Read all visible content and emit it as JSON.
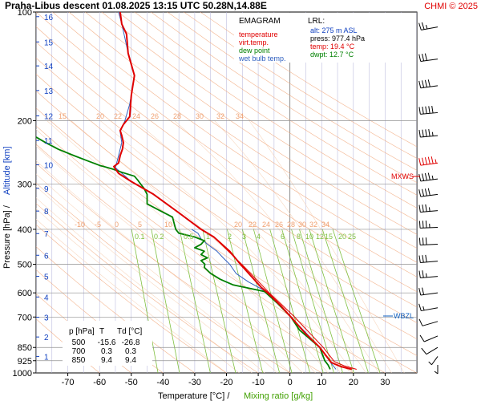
{
  "header": {
    "title": "Praha-Libus   descent   01.08.2025 13:15 UTC  50.28N,14.88E",
    "credit": "CHMI © 2025"
  },
  "colors": {
    "temperature": "#e00000",
    "virt_temp": "#e00000",
    "dew_point": "#008000",
    "wet_bulb": "#3060c0",
    "isotherm": "#b0b0d8",
    "dry_adiabat": "#f0a070",
    "moist_adiabat": "#f8d8c0",
    "mixing_ratio": "#80c040",
    "isobar": "#909090",
    "wind": "#000000",
    "mxws": "#e00000",
    "wbzl": "#1060c0"
  },
  "legend": {
    "title": "EMAGRAM",
    "items": [
      {
        "label": "temperature",
        "color": "#e00000"
      },
      {
        "label": "virt.temp.",
        "color": "#e00000"
      },
      {
        "label": "dew point",
        "color": "#008000"
      },
      {
        "label": "wet bulb temp.",
        "color": "#3060c0"
      }
    ]
  },
  "lrl": {
    "title": "LRL:",
    "alt": "alt: 275 m ASL",
    "press": "press: 977.4 hPa",
    "temp": "temp: 19.4 °C",
    "dwpt": "dwpt: 12.7 °C"
  },
  "table": {
    "headers": [
      "p [hPa]",
      "T",
      "Td [°C]"
    ],
    "rows": [
      [
        "500",
        "-15.6",
        "-26.8"
      ],
      [
        "700",
        "0.3",
        "0.3"
      ],
      [
        "850",
        "9.4",
        "9.4"
      ]
    ]
  },
  "markers": {
    "mxws": "MXWS",
    "wbzl": "WBZL"
  },
  "chart_data": {
    "type": "line",
    "xlabel": "Temperature [°C]  /",
    "xlabel2": "Mixing ratio [g/kg]",
    "ylabel": "Pressure [hPa]  /",
    "ylabel2": "Altitude [km]",
    "xlim": [
      -80,
      40
    ],
    "ylim": [
      1000,
      100
    ],
    "y_scale": "log",
    "x_ticks": [
      -70,
      -60,
      -50,
      -40,
      -30,
      -20,
      -10,
      0,
      10,
      20,
      30
    ],
    "y_ticks": [
      100,
      200,
      300,
      400,
      500,
      600,
      700,
      850,
      925,
      1000
    ],
    "altitude_ticks": [
      {
        "km": "1",
        "p": 900
      },
      {
        "km": "2",
        "p": 795
      },
      {
        "km": "3",
        "p": 701
      },
      {
        "km": "4",
        "p": 616
      },
      {
        "km": "5",
        "p": 540
      },
      {
        "km": "6",
        "p": 472
      },
      {
        "km": "7",
        "p": 411
      },
      {
        "km": "8",
        "p": 356
      },
      {
        "km": "9",
        "p": 308
      },
      {
        "km": "10",
        "p": 265
      },
      {
        "km": "11",
        "p": 227
      },
      {
        "km": "12",
        "p": 194
      },
      {
        "km": "13",
        "p": 165
      },
      {
        "km": "14",
        "p": 141
      },
      {
        "km": "15",
        "p": 121
      },
      {
        "km": "16",
        "p": 103
      }
    ],
    "dry_adiabat_labels": [
      "15",
      "20",
      "22",
      "24",
      "26",
      "28",
      "30",
      "32",
      "34"
    ],
    "moist_adiabat_labels": [
      "-10",
      "-5",
      "0",
      "5",
      "10",
      "20",
      "22",
      "24",
      "26",
      "28",
      "30",
      "32",
      "34"
    ],
    "mixing_ratio_labels": [
      "0.1",
      "0.2",
      "0.5",
      "1",
      "2",
      "3",
      "4",
      "6",
      "8",
      "10",
      "12",
      "15",
      "20",
      "25"
    ],
    "grid": true,
    "series": [
      {
        "name": "temperature",
        "points": [
          [
            19.5,
            977
          ],
          [
            16,
            960
          ],
          [
            13,
            935
          ],
          [
            9.4,
            850
          ],
          [
            5,
            780
          ],
          [
            0.3,
            700
          ],
          [
            -3,
            650
          ],
          [
            -7,
            600
          ],
          [
            -9,
            580
          ],
          [
            -15.6,
            500
          ],
          [
            -19,
            460
          ],
          [
            -24,
            420
          ],
          [
            -28,
            400
          ],
          [
            -35,
            360
          ],
          [
            -43,
            320
          ],
          [
            -50,
            295
          ],
          [
            -54,
            280
          ],
          [
            -55.5,
            268
          ],
          [
            -54,
            262
          ],
          [
            -53.5,
            250
          ],
          [
            -52.8,
            240
          ],
          [
            -52.5,
            230
          ],
          [
            -53,
            220
          ],
          [
            -53.5,
            213
          ],
          [
            -52.5,
            205
          ],
          [
            -50.5,
            195
          ],
          [
            -50,
            170
          ],
          [
            -49,
            150
          ],
          [
            -51,
            130
          ],
          [
            -51.5,
            115
          ],
          [
            -53,
            108
          ],
          [
            -53.5,
            100
          ]
        ]
      },
      {
        "name": "dew point",
        "points": [
          [
            12.7,
            977
          ],
          [
            12,
            950
          ],
          [
            11,
            925
          ],
          [
            9.4,
            850
          ],
          [
            3,
            760
          ],
          [
            0.3,
            700
          ],
          [
            -4,
            640
          ],
          [
            -8,
            595
          ],
          [
            -18,
            570
          ],
          [
            -22,
            550
          ],
          [
            -25,
            530
          ],
          [
            -27,
            510
          ],
          [
            -26.8,
            500
          ],
          [
            -28,
            488
          ],
          [
            -26,
            480
          ],
          [
            -28,
            470
          ],
          [
            -27,
            460
          ],
          [
            -30,
            450
          ],
          [
            -28,
            440
          ],
          [
            -27,
            430
          ],
          [
            -30,
            420
          ],
          [
            -35,
            410
          ],
          [
            -36,
            400
          ],
          [
            -36.5,
            385
          ],
          [
            -37,
            370
          ],
          [
            -41,
            355
          ],
          [
            -45,
            340
          ],
          [
            -45,
            320
          ],
          [
            -46,
            308
          ],
          [
            -47,
            300
          ],
          [
            -48,
            292
          ],
          [
            -49,
            285
          ],
          [
            -53,
            278
          ],
          [
            -56,
            272
          ],
          [
            -60,
            266
          ],
          [
            -64,
            258
          ],
          [
            -68,
            250
          ],
          [
            -73,
            240
          ],
          [
            -77,
            230
          ],
          [
            -80,
            222
          ]
        ]
      },
      {
        "name": "wet bulb temp.",
        "points": [
          [
            14.5,
            977
          ],
          [
            13,
            940
          ],
          [
            9.4,
            850
          ],
          [
            0.3,
            700
          ],
          [
            -7,
            600
          ],
          [
            -9,
            585
          ],
          [
            -13,
            560
          ],
          [
            -17,
            530
          ],
          [
            -19,
            500
          ],
          [
            -21,
            480
          ],
          [
            -23,
            460
          ],
          [
            -26,
            440
          ],
          [
            -28,
            425
          ],
          [
            -29,
            410
          ],
          [
            -31,
            400
          ]
        ]
      },
      {
        "name": "virt.temp.",
        "points": [
          [
            21,
            977
          ],
          [
            17,
            955
          ],
          [
            14,
            930
          ],
          [
            10.5,
            850
          ],
          [
            1.5,
            700
          ],
          [
            -6.5,
            600
          ],
          [
            -15.2,
            500
          ],
          [
            -24,
            420
          ],
          [
            -28,
            400
          ]
        ]
      },
      {
        "name": "upper wet bulb",
        "points": [
          [
            -50,
            295
          ],
          [
            -55,
            270
          ],
          [
            -54,
            250
          ],
          [
            -53,
            230
          ],
          [
            -53.5,
            215
          ],
          [
            -52,
            200
          ],
          [
            -50.5,
            180
          ],
          [
            -49.5,
            160
          ],
          [
            -49,
            150
          ],
          [
            -50,
            140
          ],
          [
            -51,
            130
          ],
          [
            -52,
            118
          ],
          [
            -53,
            108
          ],
          [
            -54,
            100
          ]
        ]
      }
    ],
    "wind_profile": [
      {
        "p": 110,
        "dir": 250,
        "spd": 25
      },
      {
        "p": 135,
        "dir": 255,
        "spd": 30
      },
      {
        "p": 160,
        "dir": 255,
        "spd": 40
      },
      {
        "p": 190,
        "dir": 260,
        "spd": 50
      },
      {
        "p": 220,
        "dir": 260,
        "spd": 45
      },
      {
        "p": 262,
        "dir": 255,
        "spd": 55
      },
      {
        "p": 290,
        "dir": 255,
        "spd": 45
      },
      {
        "p": 320,
        "dir": 255,
        "spd": 40
      },
      {
        "p": 355,
        "dir": 260,
        "spd": 35
      },
      {
        "p": 395,
        "dir": 265,
        "spd": 35
      },
      {
        "p": 440,
        "dir": 265,
        "spd": 30
      },
      {
        "p": 490,
        "dir": 260,
        "spd": 30
      },
      {
        "p": 540,
        "dir": 260,
        "spd": 25
      },
      {
        "p": 600,
        "dir": 255,
        "spd": 20
      },
      {
        "p": 660,
        "dir": 250,
        "spd": 15
      },
      {
        "p": 720,
        "dir": 240,
        "spd": 10
      },
      {
        "p": 790,
        "dir": 230,
        "spd": 10
      },
      {
        "p": 850,
        "dir": 220,
        "spd": 10
      },
      {
        "p": 900,
        "dir": 200,
        "spd": 5
      },
      {
        "p": 950,
        "dir": 180,
        "spd": 5
      }
    ]
  }
}
